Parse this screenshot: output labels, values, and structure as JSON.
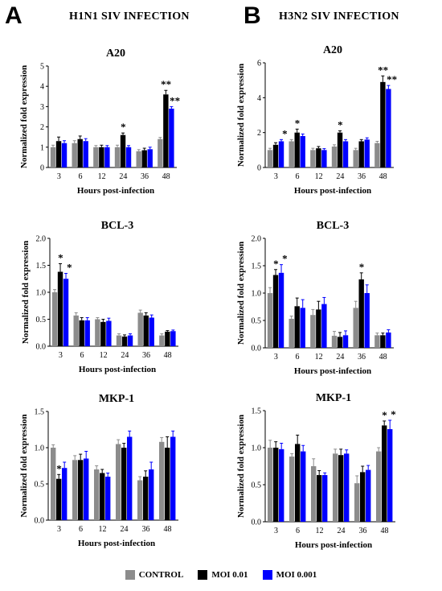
{
  "panels": {
    "A": {
      "letter": "A",
      "title": "H1N1 SIV INFECTION"
    },
    "B": {
      "letter": "B",
      "title": "H3N2 SIV INFECTION"
    }
  },
  "legend": [
    {
      "label": "CONTROL",
      "color": "#8c8c8c"
    },
    {
      "label": "MOI 0.01",
      "color": "#000000"
    },
    {
      "label": "MOI 0.001",
      "color": "#0000ff"
    }
  ],
  "chart_data": [
    {
      "type": "bar",
      "panel": "A",
      "title": "A20",
      "xlabel": "Hours post-infection",
      "ylabel": "Normalized fold expression",
      "categories": [
        "3",
        "6",
        "12",
        "24",
        "36",
        "48"
      ],
      "ylim": [
        0,
        5
      ],
      "yticks": [
        0,
        1,
        2,
        3,
        4,
        5
      ],
      "series": [
        {
          "name": "CONTROL",
          "values": [
            1.0,
            1.2,
            1.0,
            1.0,
            0.8,
            1.4
          ],
          "errors": [
            0.1,
            0.12,
            0.08,
            0.1,
            0.08,
            0.08
          ]
        },
        {
          "name": "MOI 0.01",
          "values": [
            1.3,
            1.4,
            1.0,
            1.6,
            0.85,
            3.6
          ],
          "errors": [
            0.2,
            0.15,
            0.1,
            0.1,
            0.1,
            0.2
          ]
        },
        {
          "name": "MOI 0.001",
          "values": [
            1.2,
            1.3,
            1.0,
            1.0,
            0.9,
            2.9
          ],
          "errors": [
            0.12,
            0.12,
            0.08,
            0.08,
            0.1,
            0.1
          ]
        }
      ],
      "annotations": [
        {
          "category": 3,
          "series": 1,
          "text": "*"
        },
        {
          "category": 5,
          "series": 1,
          "text": "**"
        },
        {
          "category": 5,
          "series": 2,
          "text": "**"
        }
      ]
    },
    {
      "type": "bar",
      "panel": "B",
      "title": "A20",
      "xlabel": "Hours post-infection",
      "ylabel": "Normalized fold expression",
      "categories": [
        "3",
        "6",
        "12",
        "24",
        "36",
        "48"
      ],
      "ylim": [
        0,
        6
      ],
      "yticks": [
        0,
        2,
        4,
        6
      ],
      "series": [
        {
          "name": "CONTROL",
          "values": [
            1.0,
            1.5,
            1.0,
            1.2,
            1.0,
            1.4
          ],
          "errors": [
            0.1,
            0.1,
            0.1,
            0.1,
            0.1,
            0.1
          ]
        },
        {
          "name": "MOI 0.01",
          "values": [
            1.3,
            2.0,
            1.1,
            2.0,
            1.5,
            4.9
          ],
          "errors": [
            0.12,
            0.2,
            0.1,
            0.1,
            0.1,
            0.35
          ]
        },
        {
          "name": "MOI 0.001",
          "values": [
            1.5,
            1.8,
            1.0,
            1.5,
            1.6,
            4.5
          ],
          "errors": [
            0.1,
            0.12,
            0.08,
            0.1,
            0.1,
            0.2
          ]
        }
      ],
      "annotations": [
        {
          "category": 0,
          "series": 2,
          "text": "*"
        },
        {
          "category": 1,
          "series": 1,
          "text": "*"
        },
        {
          "category": 3,
          "series": 1,
          "text": "*"
        },
        {
          "category": 5,
          "series": 1,
          "text": "**"
        },
        {
          "category": 5,
          "series": 2,
          "text": "**"
        }
      ]
    },
    {
      "type": "bar",
      "panel": "A",
      "title": "BCL-3",
      "xlabel": "Hours post-infection",
      "ylabel": "Normalized fold expression",
      "categories": [
        "3",
        "6",
        "12",
        "24",
        "36",
        "48"
      ],
      "ylim": [
        0,
        2.0
      ],
      "yticks": [
        "0.0",
        "0.5",
        "1.0",
        "1.5",
        "2.0"
      ],
      "series": [
        {
          "name": "CONTROL",
          "values": [
            1.0,
            0.57,
            0.5,
            0.2,
            0.62,
            0.2
          ],
          "errors": [
            0.05,
            0.05,
            0.03,
            0.03,
            0.05,
            0.03
          ]
        },
        {
          "name": "MOI 0.01",
          "values": [
            1.38,
            0.48,
            0.45,
            0.18,
            0.57,
            0.27
          ],
          "errors": [
            0.15,
            0.05,
            0.05,
            0.03,
            0.05,
            0.02
          ]
        },
        {
          "name": "MOI 0.001",
          "values": [
            1.25,
            0.48,
            0.47,
            0.2,
            0.53,
            0.28
          ],
          "errors": [
            0.1,
            0.05,
            0.05,
            0.03,
            0.05,
            0.02
          ]
        }
      ],
      "annotations": [
        {
          "category": 0,
          "series": 1,
          "text": "*"
        },
        {
          "category": 0,
          "series": 2,
          "text": "*"
        }
      ]
    },
    {
      "type": "bar",
      "panel": "B",
      "title": "BCL-3",
      "xlabel": "Hours post-infection",
      "ylabel": "Normalized fold expression",
      "categories": [
        "3",
        "6",
        "12",
        "24",
        "36",
        "48"
      ],
      "ylim": [
        0,
        2.0
      ],
      "yticks": [
        "0.0",
        "0.5",
        "1.0",
        "1.5",
        "2.0"
      ],
      "series": [
        {
          "name": "CONTROL",
          "values": [
            1.0,
            0.53,
            0.6,
            0.22,
            0.73,
            0.23
          ],
          "errors": [
            0.1,
            0.05,
            0.1,
            0.08,
            0.12,
            0.04
          ]
        },
        {
          "name": "MOI 0.01",
          "values": [
            1.33,
            0.76,
            0.7,
            0.2,
            1.25,
            0.23
          ],
          "errors": [
            0.1,
            0.15,
            0.15,
            0.08,
            0.12,
            0.04
          ]
        },
        {
          "name": "MOI 0.001",
          "values": [
            1.37,
            0.73,
            0.8,
            0.23,
            1.0,
            0.28
          ],
          "errors": [
            0.15,
            0.15,
            0.12,
            0.08,
            0.15,
            0.05
          ]
        }
      ],
      "annotations": [
        {
          "category": 0,
          "series": 1,
          "text": "*"
        },
        {
          "category": 0,
          "series": 2,
          "text": "*"
        },
        {
          "category": 4,
          "series": 1,
          "text": "*"
        }
      ]
    },
    {
      "type": "bar",
      "panel": "A",
      "title": "MKP-1",
      "xlabel": "Hours post-infection",
      "ylabel": "Normalized fold expression",
      "categories": [
        "3",
        "6",
        "12",
        "24",
        "36",
        "48"
      ],
      "ylim": [
        0,
        1.5
      ],
      "yticks": [
        "0.0",
        "0.5",
        "1.0",
        "1.5"
      ],
      "series": [
        {
          "name": "CONTROL",
          "values": [
            1.0,
            0.83,
            0.7,
            1.05,
            0.55,
            1.08
          ],
          "errors": [
            0.04,
            0.06,
            0.05,
            0.06,
            0.05,
            0.06
          ]
        },
        {
          "name": "MOI 0.01",
          "values": [
            0.57,
            0.83,
            0.65,
            1.0,
            0.6,
            1.0
          ],
          "errors": [
            0.06,
            0.08,
            0.05,
            0.06,
            0.08,
            0.15
          ]
        },
        {
          "name": "MOI 0.001",
          "values": [
            0.72,
            0.85,
            0.6,
            1.15,
            0.7,
            1.15
          ],
          "errors": [
            0.08,
            0.1,
            0.05,
            0.08,
            0.1,
            0.08
          ]
        }
      ],
      "annotations": [
        {
          "category": 0,
          "series": 1,
          "text": "*"
        }
      ]
    },
    {
      "type": "bar",
      "panel": "B",
      "title": "MKP-1",
      "xlabel": "Hours post-infection",
      "ylabel": "Normalized fold expression",
      "categories": [
        "3",
        "6",
        "12",
        "24",
        "36",
        "48"
      ],
      "ylim": [
        0,
        1.5
      ],
      "yticks": [
        "0.0",
        "0.5",
        "1.0",
        "1.5"
      ],
      "series": [
        {
          "name": "CONTROL",
          "values": [
            1.0,
            0.88,
            0.75,
            0.92,
            0.52,
            0.95
          ],
          "errors": [
            0.1,
            0.04,
            0.1,
            0.06,
            0.1,
            0.05
          ]
        },
        {
          "name": "MOI 0.01",
          "values": [
            1.0,
            1.05,
            0.63,
            0.9,
            0.67,
            1.3
          ],
          "errors": [
            0.08,
            0.12,
            0.06,
            0.08,
            0.08,
            0.06
          ]
        },
        {
          "name": "MOI 0.001",
          "values": [
            0.98,
            0.95,
            0.63,
            0.92,
            0.7,
            1.25
          ],
          "errors": [
            0.08,
            0.08,
            0.03,
            0.05,
            0.06,
            0.12
          ]
        }
      ],
      "annotations": [
        {
          "category": 5,
          "series": 1,
          "text": "*"
        },
        {
          "category": 5,
          "series": 2,
          "text": "*"
        }
      ]
    }
  ]
}
